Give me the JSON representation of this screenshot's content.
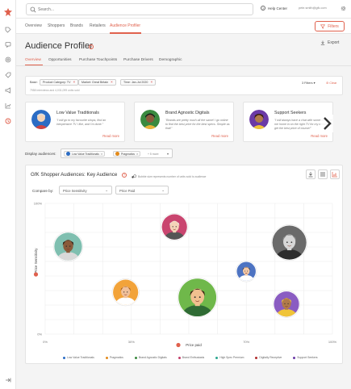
{
  "search": {
    "placeholder": "Search..."
  },
  "header": {
    "help_label": "Help Center",
    "email": "pete.smith@gfk.com"
  },
  "nav": {
    "tabs": [
      {
        "label": "Overview"
      },
      {
        "label": "Shoppers"
      },
      {
        "label": "Brands"
      },
      {
        "label": "Retailers"
      },
      {
        "label": "Audience Profiler"
      }
    ],
    "filters_label": "Filters"
  },
  "page": {
    "title": "Audience Profiler",
    "export_label": "Export"
  },
  "subtabs": [
    {
      "label": "Overview"
    },
    {
      "label": "Opportunities"
    },
    {
      "label": "Purchase Touchpoints"
    },
    {
      "label": "Purchase Drivers"
    },
    {
      "label": "Demographic"
    }
  ],
  "filters": {
    "base_label": "Base:",
    "chips": [
      {
        "label": "Product Category: TV"
      },
      {
        "label": "Market: Great Britain"
      },
      {
        "label": "Time: Jan-Jul 2020"
      }
    ],
    "count_text": "7958 interviews and 4,031,099 units sold",
    "num_filters": "3 Filters",
    "clear_label": "Clear"
  },
  "personas": [
    {
      "name": "Low Value Traditionals",
      "quote": "\"I will go to my favourite shops, find an inexpensive TV I like, and I'm done.\"",
      "read_more": "Read more",
      "color": "#2b6cc4"
    },
    {
      "name": "Brand Agnostic Digitals",
      "quote": "\"Brands are pretty much all the same! I go online to find the best price for the best specs. Simple as that!\"",
      "read_more": "Read more",
      "color": "#3a8a3f"
    },
    {
      "name": "Support Seekers",
      "quote": "\"I will always have a chat with someone to help me home in on the right TV for my needs, and to get the best price of course!\"",
      "read_more": "Read more",
      "color": "#6b3aa6"
    }
  ],
  "display": {
    "label": "Display audiences:",
    "chips": [
      {
        "label": "Low Value Traditionals",
        "color": "#2b6cc4"
      },
      {
        "label": "Pragmatics",
        "color": "#e38a1a"
      }
    ],
    "more": "+ 5 more"
  },
  "chart_panel": {
    "title": "GfK Shopper Audiences: Key Audience",
    "note": "Bubble size represents number of units sold to audience",
    "compare_label": "Compare by:",
    "selector_y": "Price Sensitivity",
    "selector_x": "Price Paid"
  },
  "chart_data": {
    "type": "scatter",
    "xlabel": "Price paid",
    "ylabel": "Price Sensitivity",
    "xlim": [
      0,
      100
    ],
    "ylim": [
      0,
      100
    ],
    "x_ticks": [
      "0%",
      "30%",
      "70%",
      "100%"
    ],
    "x_tick_values": [
      0,
      30,
      70,
      100
    ],
    "y_ticks": [
      "0%",
      "100%"
    ],
    "y_tick_values": [
      0,
      100
    ],
    "series": [
      {
        "name": "Low Value Traditionals",
        "x": 8,
        "y": 67,
        "size": 2.2,
        "color": "#2b6cc4",
        "skin": "#8a5a3b",
        "hair": "#2a1a10",
        "bg": "#7fbfb0",
        "shirt": "#d9d9d9"
      },
      {
        "name": "Pragmatics",
        "x": 28,
        "y": 32,
        "size": 2.0,
        "color": "#e38a1a",
        "skin": "#f0c09a",
        "hair": "#a35a1c",
        "bg": "#f2a33a",
        "shirt": "#ffffff"
      },
      {
        "name": "Brand Agnostic Digitals",
        "x": 53,
        "y": 28,
        "size": 3.0,
        "color": "#3a8a3f",
        "skin": "#f1c08f",
        "hair": "#3a2010",
        "bg": "#6fb84a",
        "shirt": "#2f6b34"
      },
      {
        "name": "Brand Enthusiasts",
        "x": 45,
        "y": 82,
        "size": 2.0,
        "color": "#c23f6a",
        "skin": "#f5d4b8",
        "hair": "#e8e8e8",
        "bg": "#c9456f",
        "shirt": "#555"
      },
      {
        "name": "High Spec Premium",
        "x": 85,
        "y": 70,
        "size": 2.7,
        "color": "#2aa68f",
        "skin": "#d7d7d7",
        "hair": "#8a8a8a",
        "bg": "#6a6a6a",
        "shirt": "#2d2d2d"
      },
      {
        "name": "Digitally Receptive",
        "x": 70,
        "y": 48,
        "size": 1.5,
        "color": "#b02c2c",
        "skin": "#f3c9a8",
        "hair": "#3a2a1a",
        "bg": "#4d73c2",
        "shirt": "#ffffff"
      },
      {
        "name": "Support Seekers",
        "x": 84,
        "y": 23,
        "size": 2.0,
        "color": "#6b3aa6",
        "skin": "#b07a4a",
        "hair": "#f0c438",
        "bg": "#8a5cc2",
        "shirt": "#f0c438"
      }
    ],
    "legend_position": "bottom",
    "grid": true
  }
}
